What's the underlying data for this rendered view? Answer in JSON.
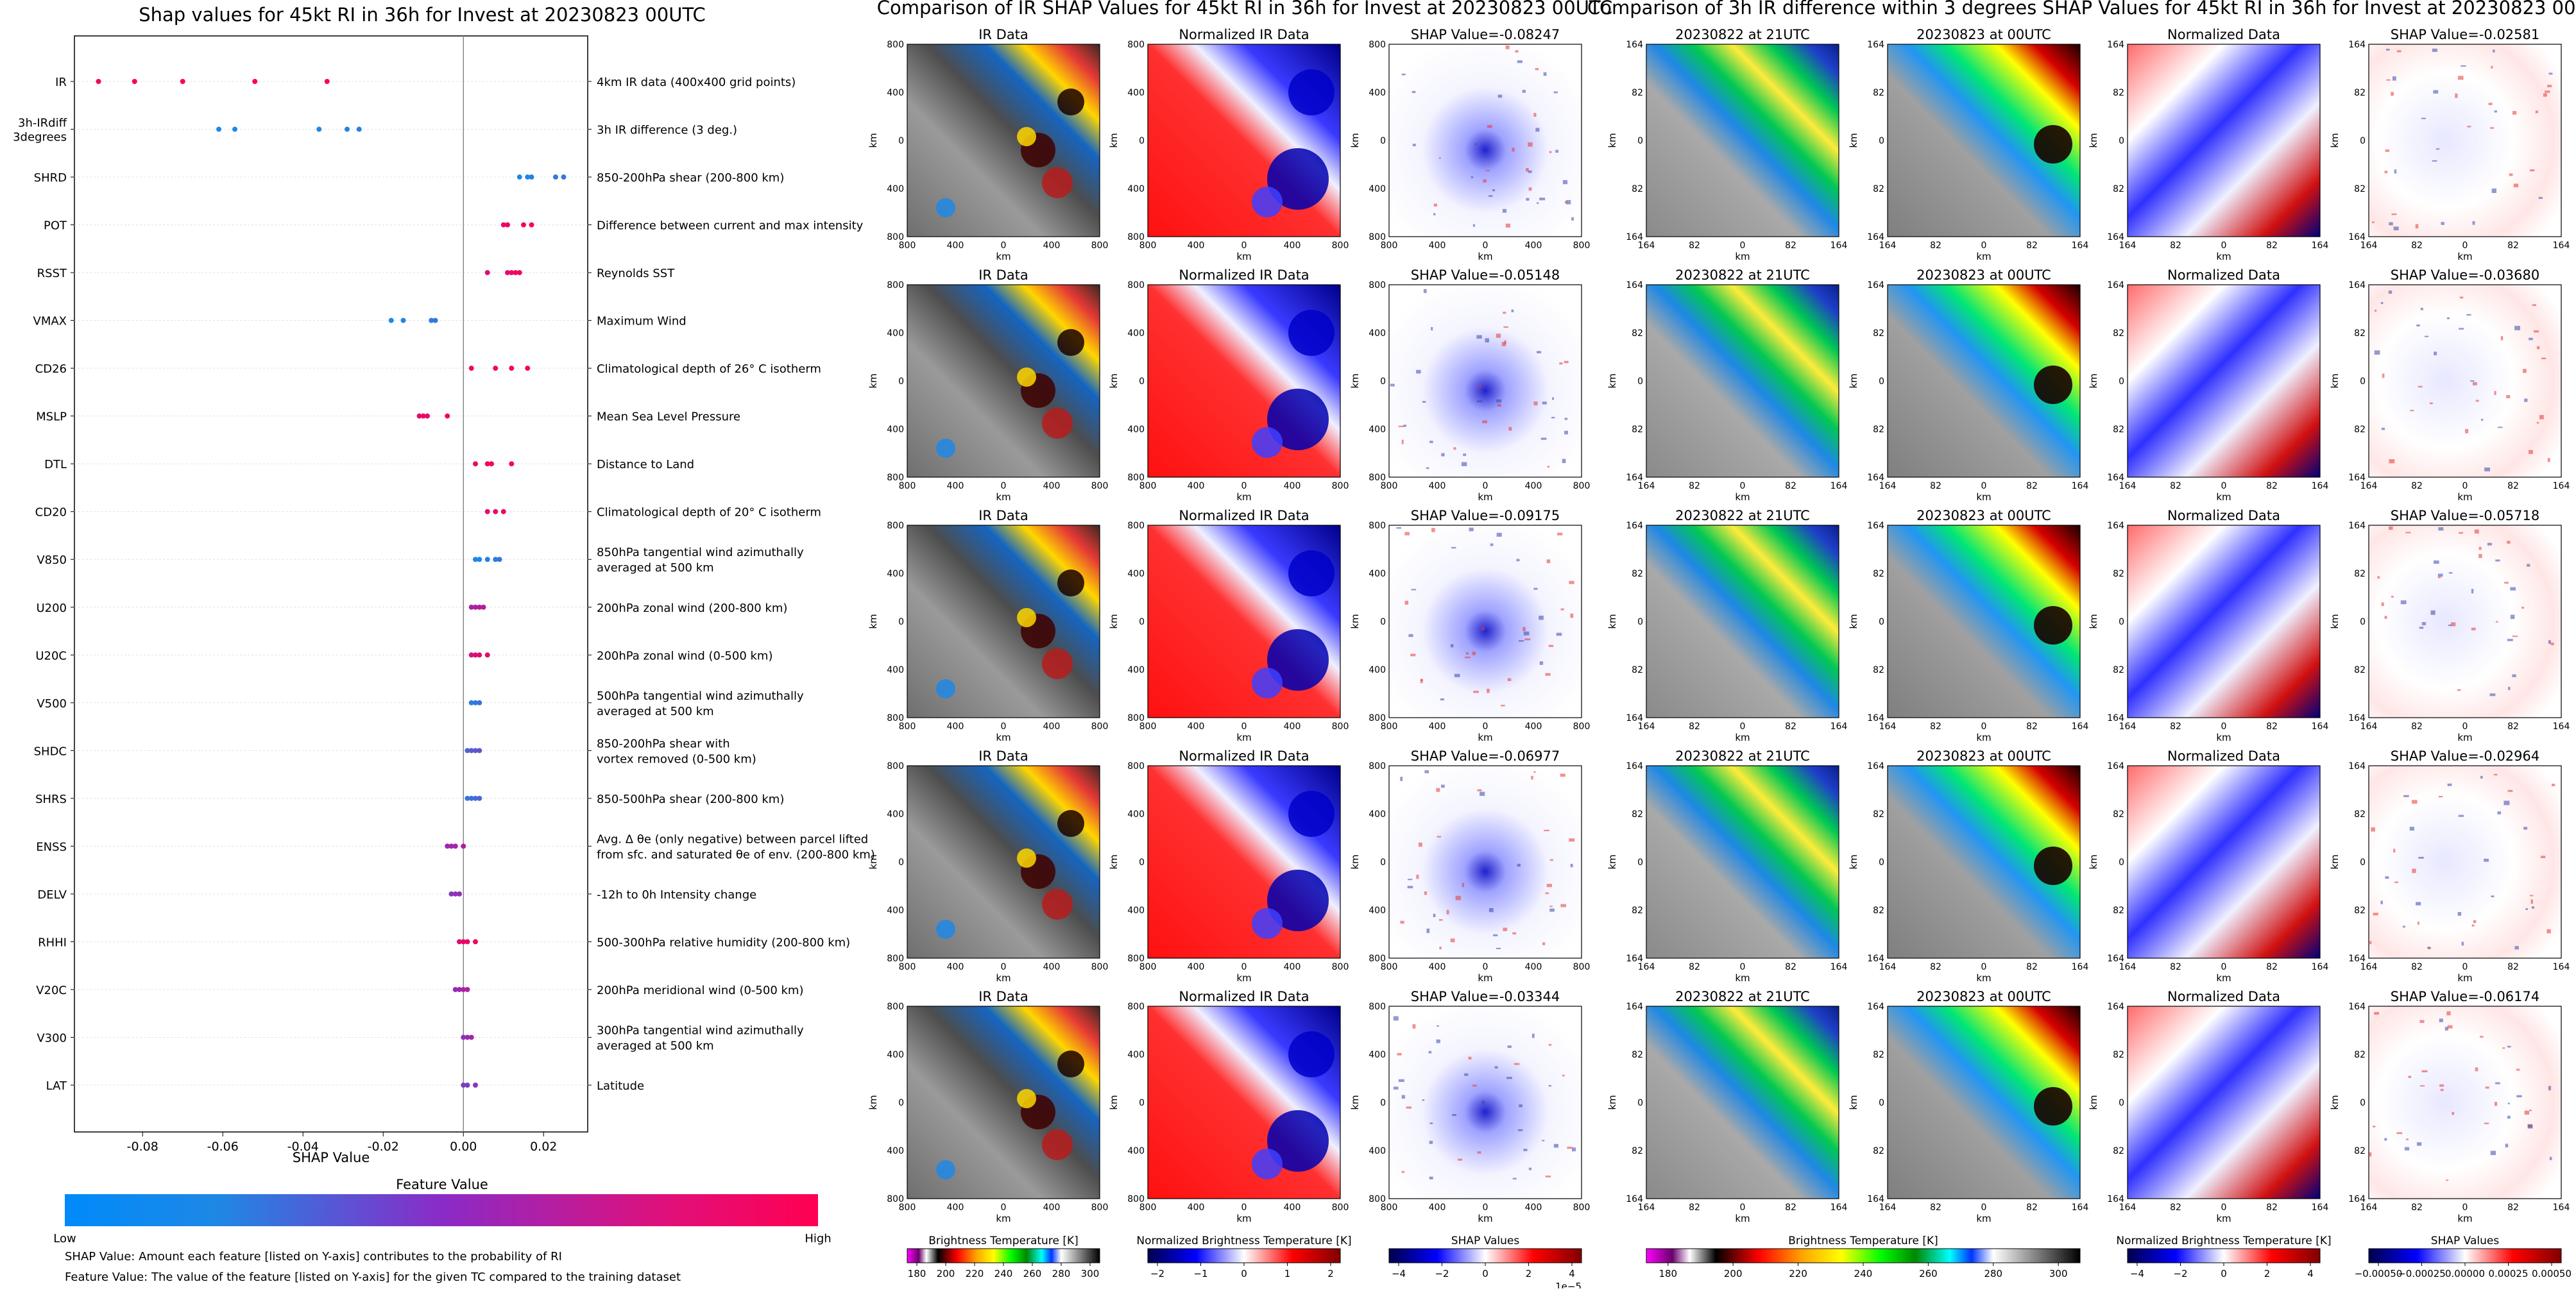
{
  "colors": {
    "low": "#1e88e5",
    "mid": "#9c27b0",
    "high": "#ff0052"
  },
  "shap_panel": {
    "caption1": "SHAP Value: Amount each feature [listed on Y-axis] contributes to the probability of RI",
    "caption2": "Feature Value: The value of the feature [listed on Y-axis] for the given TC compared to the training dataset",
    "colorbar_title": "Feature Value",
    "low_label": "Low",
    "high_label": "High"
  },
  "chart_data": [
    {
      "type": "scatter",
      "title": "Shap values for 45kt RI in 36h for Invest at 20230823 00UTC",
      "xlabel": "SHAP Value",
      "xlim": [
        -0.097,
        0.031
      ],
      "xticks": [
        "-0.08",
        "-0.06",
        "-0.04",
        "-0.02",
        "0.00",
        "0.02"
      ],
      "xtick_values": [
        -0.08,
        -0.06,
        -0.04,
        -0.02,
        0.0,
        0.02
      ],
      "features": [
        {
          "name": "IR",
          "description": [
            "4km IR data (400x400 grid points)"
          ],
          "points": [
            -0.091,
            -0.082,
            -0.07,
            -0.052,
            -0.034
          ],
          "level": 1.0
        },
        {
          "name": "3h-IRdiff|3degrees",
          "description": [
            "3h IR difference (3 deg.)"
          ],
          "points": [
            -0.061,
            -0.057,
            -0.036,
            -0.029,
            -0.026
          ],
          "level": 0.0
        },
        {
          "name": "SHRD",
          "description": [
            "850-200hPa shear (200-800 km)"
          ],
          "points": [
            0.014,
            0.016,
            0.017,
            0.023,
            0.025
          ],
          "level": 0.05
        },
        {
          "name": "POT",
          "description": [
            "Difference between current and max intensity"
          ],
          "points": [
            0.01,
            0.011,
            0.015,
            0.017
          ],
          "level": 0.95
        },
        {
          "name": "RSST",
          "description": [
            "Reynolds SST"
          ],
          "points": [
            0.006,
            0.011,
            0.012,
            0.013,
            0.014
          ],
          "level": 0.9
        },
        {
          "name": "VMAX",
          "description": [
            "Maximum Wind"
          ],
          "points": [
            -0.018,
            -0.015,
            -0.008,
            -0.007
          ],
          "level": 0.05
        },
        {
          "name": "CD26",
          "description": [
            "Climatological depth of 26° C isotherm"
          ],
          "points": [
            0.002,
            0.008,
            0.012,
            0.016
          ],
          "level": 0.95
        },
        {
          "name": "MSLP",
          "description": [
            "Mean Sea Level Pressure"
          ],
          "points": [
            -0.011,
            -0.01,
            -0.009,
            -0.004
          ],
          "level": 0.9
        },
        {
          "name": "DTL",
          "description": [
            "Distance to Land"
          ],
          "points": [
            0.003,
            0.006,
            0.007,
            0.012
          ],
          "level": 0.95
        },
        {
          "name": "CD20",
          "description": [
            "Climatological depth of 20° C isotherm"
          ],
          "points": [
            0.006,
            0.008,
            0.01
          ],
          "level": 0.9
        },
        {
          "name": "V850",
          "description": [
            "850hPa tangential wind azimuthally",
            "averaged at 500 km"
          ],
          "points": [
            0.003,
            0.004,
            0.006,
            0.008,
            0.009
          ],
          "level": 0.05
        },
        {
          "name": "U200",
          "description": [
            "200hPa zonal wind (200-800 km)"
          ],
          "points": [
            0.002,
            0.003,
            0.004,
            0.005
          ],
          "level": 0.6
        },
        {
          "name": "U20C",
          "description": [
            "200hPa zonal wind (0-500 km)"
          ],
          "points": [
            0.002,
            0.003,
            0.004,
            0.006
          ],
          "level": 0.85
        },
        {
          "name": "V500",
          "description": [
            "500hPa tangential wind azimuthally",
            "averaged at 500 km"
          ],
          "points": [
            0.002,
            0.003,
            0.004
          ],
          "level": 0.1
        },
        {
          "name": "SHDC",
          "description": [
            "850-200hPa shear with",
            "vortex removed (0-500 km)"
          ],
          "points": [
            0.001,
            0.002,
            0.003,
            0.004
          ],
          "level": 0.25
        },
        {
          "name": "SHRS",
          "description": [
            "850-500hPa shear (200-800 km)"
          ],
          "points": [
            0.001,
            0.002,
            0.003,
            0.004
          ],
          "level": 0.15
        },
        {
          "name": "ENSS",
          "description": [
            "Avg. Δ θe (only negative) between parcel lifted",
            "from sfc. and saturated θe of env. (200-800 km)"
          ],
          "points": [
            -0.004,
            -0.003,
            -0.002,
            0.0
          ],
          "level": 0.55
        },
        {
          "name": "DELV",
          "description": [
            "-12h to 0h Intensity change"
          ],
          "points": [
            -0.003,
            -0.002,
            -0.001
          ],
          "level": 0.45
        },
        {
          "name": "RHHI",
          "description": [
            "500-300hPa relative humidity (200-800 km)"
          ],
          "points": [
            -0.001,
            0.0,
            0.001,
            0.003
          ],
          "level": 0.9
        },
        {
          "name": "V20C",
          "description": [
            "200hPa meridional wind (0-500 km)"
          ],
          "points": [
            -0.002,
            -0.001,
            0.0,
            0.001
          ],
          "level": 0.55
        },
        {
          "name": "V300",
          "description": [
            "300hPa tangential wind azimuthally",
            "averaged at 500 km"
          ],
          "points": [
            0.0,
            0.001,
            0.002
          ],
          "level": 0.5
        },
        {
          "name": "LAT",
          "description": [
            "Latitude"
          ],
          "points": [
            0.0,
            0.001,
            0.003
          ],
          "level": 0.4
        }
      ]
    },
    {
      "type": "heatmap",
      "title": "Comparison of IR SHAP Values for 45kt RI in 36h for Invest at 20230823 00UTC",
      "columns": [
        "IR Data",
        "Normalized IR Data"
      ],
      "shap_titles": [
        "SHAP Value=-0.08247",
        "SHAP Value=-0.05148",
        "SHAP Value=-0.09175",
        "SHAP Value=-0.06977",
        "SHAP Value=-0.03344"
      ],
      "axis_label": "km",
      "ticks": [
        "800",
        "400",
        "0",
        "400",
        "800"
      ],
      "colorbars": [
        {
          "label": "Brightness Temperature [K]",
          "ticks": [
            "180",
            "200",
            "220",
            "240",
            "260",
            "280",
            "300"
          ],
          "exponent": ""
        },
        {
          "label": "Normalized Brightness Temperature [K]",
          "ticks": [
            "−2",
            "−1",
            "0",
            "1",
            "2"
          ],
          "exponent": ""
        },
        {
          "label": "SHAP Values",
          "ticks": [
            "−4",
            "−2",
            "0",
            "2",
            "4"
          ],
          "exponent": "1e−5"
        }
      ]
    },
    {
      "type": "heatmap",
      "title": "Comparison of 3h IR difference within 3 degrees SHAP Values for 45kt RI in 36h for Invest at 20230823 00UTC",
      "columns": [
        "20230822 at 21UTC",
        "20230823 at 00UTC",
        "Normalized Data"
      ],
      "shap_titles": [
        "SHAP Value=-0.02581",
        "SHAP Value=-0.03680",
        "SHAP Value=-0.05718",
        "SHAP Value=-0.02964",
        "SHAP Value=-0.06174"
      ],
      "axis_label": "km",
      "ticks": [
        "164",
        "82",
        "0",
        "82",
        "164"
      ],
      "colorbars": [
        {
          "label": "Brightness Temperature [K]",
          "ticks": [
            "180",
            "200",
            "220",
            "240",
            "260",
            "280",
            "300"
          ],
          "exponent": ""
        },
        {
          "label": "Normalized Brightness Temperature [K]",
          "ticks": [
            "−4",
            "−2",
            "0",
            "2",
            "4"
          ],
          "exponent": ""
        },
        {
          "label": "SHAP Values",
          "ticks": [
            "−0.00050",
            "−0.00025",
            "0.00000",
            "0.00025",
            "0.00050"
          ],
          "exponent": ""
        }
      ]
    }
  ]
}
